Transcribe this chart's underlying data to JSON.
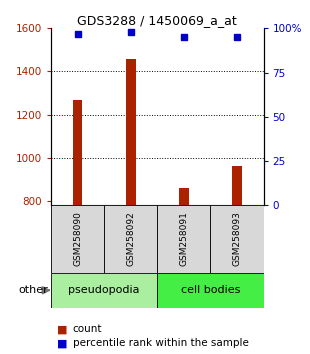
{
  "title": "GDS3288 / 1450069_a_at",
  "samples": [
    "GSM258090",
    "GSM258092",
    "GSM258091",
    "GSM258093"
  ],
  "counts": [
    1270,
    1460,
    860,
    960
  ],
  "percentiles": [
    97,
    98,
    95,
    95
  ],
  "ylim_left": [
    780,
    1600
  ],
  "ylim_right": [
    0,
    100
  ],
  "yticks_left": [
    800,
    1000,
    1200,
    1400,
    1600
  ],
  "ytick_labels_left": [
    "800",
    "1000",
    "1200",
    "1400",
    "1600"
  ],
  "yticks_right": [
    0,
    25,
    50,
    75,
    100
  ],
  "ytick_labels_right": [
    "0",
    "25",
    "50",
    "75",
    "100%"
  ],
  "bar_color": "#aa2200",
  "dot_color": "#0000cc",
  "group_pseudopodia_color": "#aaeea0",
  "group_cellbodies_color": "#44ee44",
  "other_label": "other",
  "legend_count_label": "count",
  "legend_pct_label": "percentile rank within the sample",
  "grid_color": "#000000",
  "bar_width": 0.18,
  "x_positions": [
    0,
    1,
    2,
    3
  ]
}
